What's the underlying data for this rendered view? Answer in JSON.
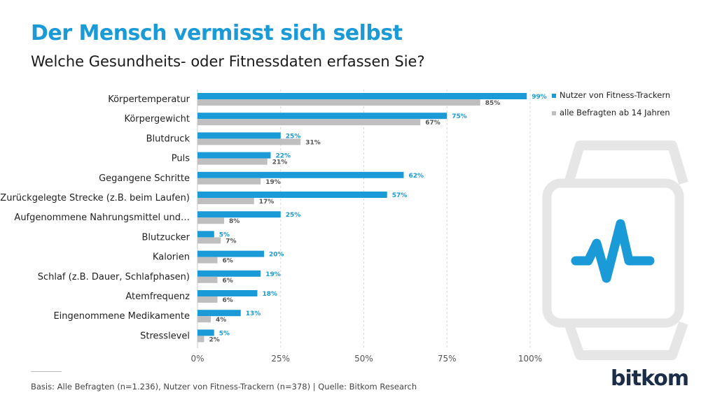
{
  "page": {
    "title": "Der Mensch vermisst sich selbst",
    "subtitle": "Welche Gesundheits- oder Fitnessdaten erfassen Sie?",
    "footer": "Basis: Alle Befragten (n=1.236), Nutzer von Fitness-Trackern (n=378) | Quelle: Bitkom Research",
    "logo_text": "bitkom"
  },
  "colors": {
    "series_trackers": "#1a9ad6",
    "series_all": "#bfbfbf",
    "title": "#1a9ad6",
    "watch_outline": "#e6e6e6",
    "watch_pulse": "#1a9ad6"
  },
  "icons": [
    "smartwatch-pulse-icon"
  ],
  "chart_data": {
    "type": "bar",
    "orientation": "horizontal",
    "categories": [
      "Körpertemperatur",
      "Körpergewicht",
      "Blutdruck",
      "Puls",
      "Gegangene Schritte",
      "Zurückgelegte Strecke (z.B. beim Laufen)",
      "Aufgenommene Nahrungsmittel und…",
      "Blutzucker",
      "Kalorien",
      "Schlaf (z.B. Dauer, Schlafphasen)",
      "Atemfrequenz",
      "Eingenommene Medikamente",
      "Stresslevel"
    ],
    "series": [
      {
        "name": "Nutzer von Fitness-Trackern",
        "values": [
          99,
          75,
          25,
          22,
          62,
          57,
          25,
          5,
          20,
          19,
          18,
          13,
          5
        ]
      },
      {
        "name": "alle Befragten ab 14 Jahren",
        "values": [
          85,
          67,
          31,
          21,
          19,
          17,
          8,
          7,
          6,
          6,
          6,
          4,
          2
        ]
      }
    ],
    "xlim": [
      0,
      100
    ],
    "x_ticks": [
      "0%",
      "25%",
      "50%",
      "75%",
      "100%"
    ],
    "tick_values": [
      0,
      25,
      50,
      75,
      100
    ],
    "value_suffix": "%",
    "legend_position": "top-right",
    "grid": "vertical dashed"
  }
}
